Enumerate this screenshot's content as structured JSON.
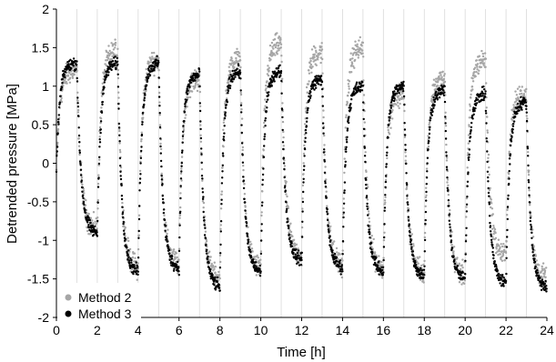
{
  "chart_data": {
    "type": "scatter",
    "xlabel": "Time [h]",
    "ylabel": "Detrended pressure [MPa]",
    "xlim": [
      0,
      24
    ],
    "ylim": [
      -2,
      2
    ],
    "x_ticks": [
      0,
      2,
      4,
      6,
      8,
      10,
      12,
      14,
      16,
      18,
      20,
      22,
      24
    ],
    "y_ticks": [
      -2,
      -1.5,
      -1,
      -0.5,
      0,
      0.5,
      1,
      1.5,
      2
    ],
    "grid": "vertical lines at each hour",
    "legend_position": "bottom-left",
    "series": [
      {
        "name": "Method 2",
        "color": "#a6a6a6",
        "cycles": [
          {
            "t0": 0.0,
            "t_switch": 1.0,
            "t1": 2.0,
            "high": 1.2,
            "low": -0.85
          },
          {
            "t0": 2.0,
            "t_switch": 3.0,
            "t1": 4.0,
            "high": 1.45,
            "low": -1.35
          },
          {
            "t0": 4.0,
            "t_switch": 5.0,
            "t1": 6.0,
            "high": 1.35,
            "low": -1.3
          },
          {
            "t0": 6.0,
            "t_switch": 7.0,
            "t1": 8.0,
            "high": 1.1,
            "low": -1.5
          },
          {
            "t0": 8.0,
            "t_switch": 9.0,
            "t1": 10.0,
            "high": 1.35,
            "low": -1.35
          },
          {
            "t0": 10.0,
            "t_switch": 11.0,
            "t1": 12.0,
            "high": 1.55,
            "low": -1.2
          },
          {
            "t0": 12.0,
            "t_switch": 13.0,
            "t1": 14.0,
            "high": 1.45,
            "low": -1.3
          },
          {
            "t0": 14.0,
            "t_switch": 15.0,
            "t1": 16.0,
            "high": 1.5,
            "low": -1.35
          },
          {
            "t0": 16.0,
            "t_switch": 17.0,
            "t1": 18.0,
            "high": 0.9,
            "low": -1.4
          },
          {
            "t0": 18.0,
            "t_switch": 19.0,
            "t1": 20.0,
            "high": 1.1,
            "low": -1.45
          },
          {
            "t0": 20.0,
            "t_switch": 21.0,
            "t1": 22.0,
            "high": 1.35,
            "low": -1.2
          },
          {
            "t0": 22.0,
            "t_switch": 23.0,
            "t1": 24.0,
            "high": 0.9,
            "low": -1.5
          }
        ]
      },
      {
        "name": "Method 3",
        "color": "#000000",
        "cycles": [
          {
            "t0": 0.0,
            "t_switch": 1.0,
            "t1": 2.0,
            "high": 1.3,
            "low": -0.9
          },
          {
            "t0": 2.0,
            "t_switch": 3.0,
            "t1": 4.0,
            "high": 1.3,
            "low": -1.4
          },
          {
            "t0": 4.0,
            "t_switch": 5.0,
            "t1": 6.0,
            "high": 1.3,
            "low": -1.35
          },
          {
            "t0": 6.0,
            "t_switch": 7.0,
            "t1": 8.0,
            "high": 1.15,
            "low": -1.6
          },
          {
            "t0": 8.0,
            "t_switch": 9.0,
            "t1": 10.0,
            "high": 1.2,
            "low": -1.4
          },
          {
            "t0": 10.0,
            "t_switch": 11.0,
            "t1": 12.0,
            "high": 1.2,
            "low": -1.25
          },
          {
            "t0": 12.0,
            "t_switch": 13.0,
            "t1": 14.0,
            "high": 1.1,
            "low": -1.35
          },
          {
            "t0": 14.0,
            "t_switch": 15.0,
            "t1": 16.0,
            "high": 1.0,
            "low": -1.4
          },
          {
            "t0": 16.0,
            "t_switch": 17.0,
            "t1": 18.0,
            "high": 1.0,
            "low": -1.45
          },
          {
            "t0": 18.0,
            "t_switch": 19.0,
            "t1": 20.0,
            "high": 0.95,
            "low": -1.5
          },
          {
            "t0": 20.0,
            "t_switch": 21.0,
            "t1": 22.0,
            "high": 0.9,
            "low": -1.55
          },
          {
            "t0": 22.0,
            "t_switch": 23.0,
            "t1": 24.0,
            "high": 0.8,
            "low": -1.6
          }
        ]
      }
    ]
  }
}
